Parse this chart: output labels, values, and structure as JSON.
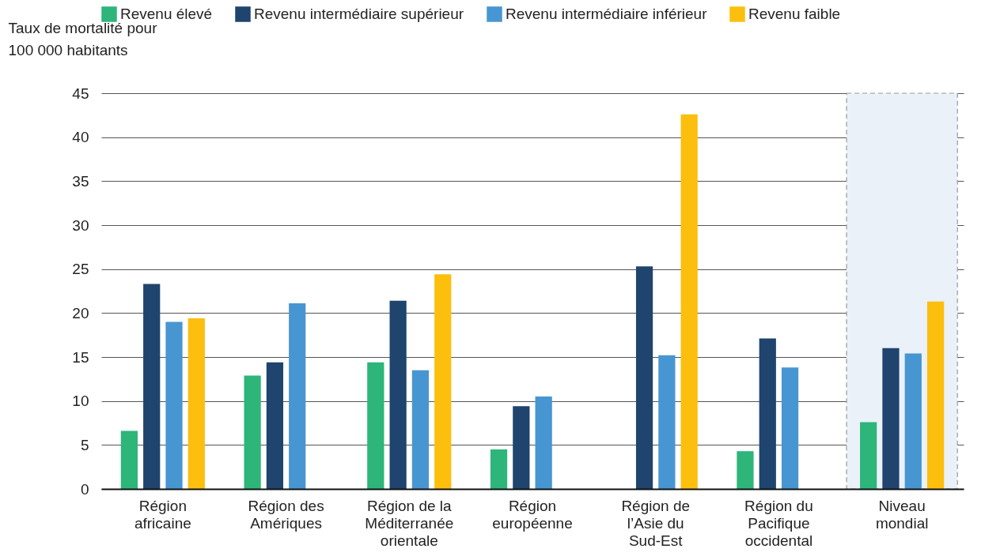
{
  "chart_data": {
    "type": "bar",
    "ylabel": "Taux de mortalité pour 100 000 habitants",
    "categories": [
      "Région africaine",
      "Région des Amériques",
      "Région de la Méditerranée orientale",
      "Région européenne",
      "Région de l’Asie du Sud-Est",
      "Région du Pacifique occidental",
      "Niveau mondial"
    ],
    "series": [
      {
        "name": "Revenu élevé",
        "color": "#2db57a",
        "values": [
          6.6,
          12.9,
          14.4,
          4.5,
          null,
          4.3,
          7.6
        ]
      },
      {
        "name": "Revenu intermédiaire supérieur",
        "color": "#1f446e",
        "values": [
          23.3,
          14.4,
          21.4,
          9.4,
          25.3,
          17.1,
          16.0
        ]
      },
      {
        "name": "Revenu intermédiaire inférieur",
        "color": "#4796d2",
        "values": [
          19.0,
          21.1,
          13.5,
          10.5,
          15.2,
          13.8,
          15.4
        ]
      },
      {
        "name": "Revenu faible",
        "color": "#fcbf0e",
        "values": [
          19.4,
          null,
          24.4,
          null,
          42.6,
          null,
          21.3
        ]
      }
    ],
    "ylim": [
      0,
      45
    ],
    "yticks": [
      0,
      5,
      10,
      15,
      20,
      25,
      30,
      35,
      40,
      45
    ],
    "grid": "y",
    "legend": "top",
    "bands": [
      {
        "axis": "x",
        "from": "Niveau mondial",
        "to": "Niveau mondial",
        "color": "#eaf1f9"
      }
    ]
  }
}
